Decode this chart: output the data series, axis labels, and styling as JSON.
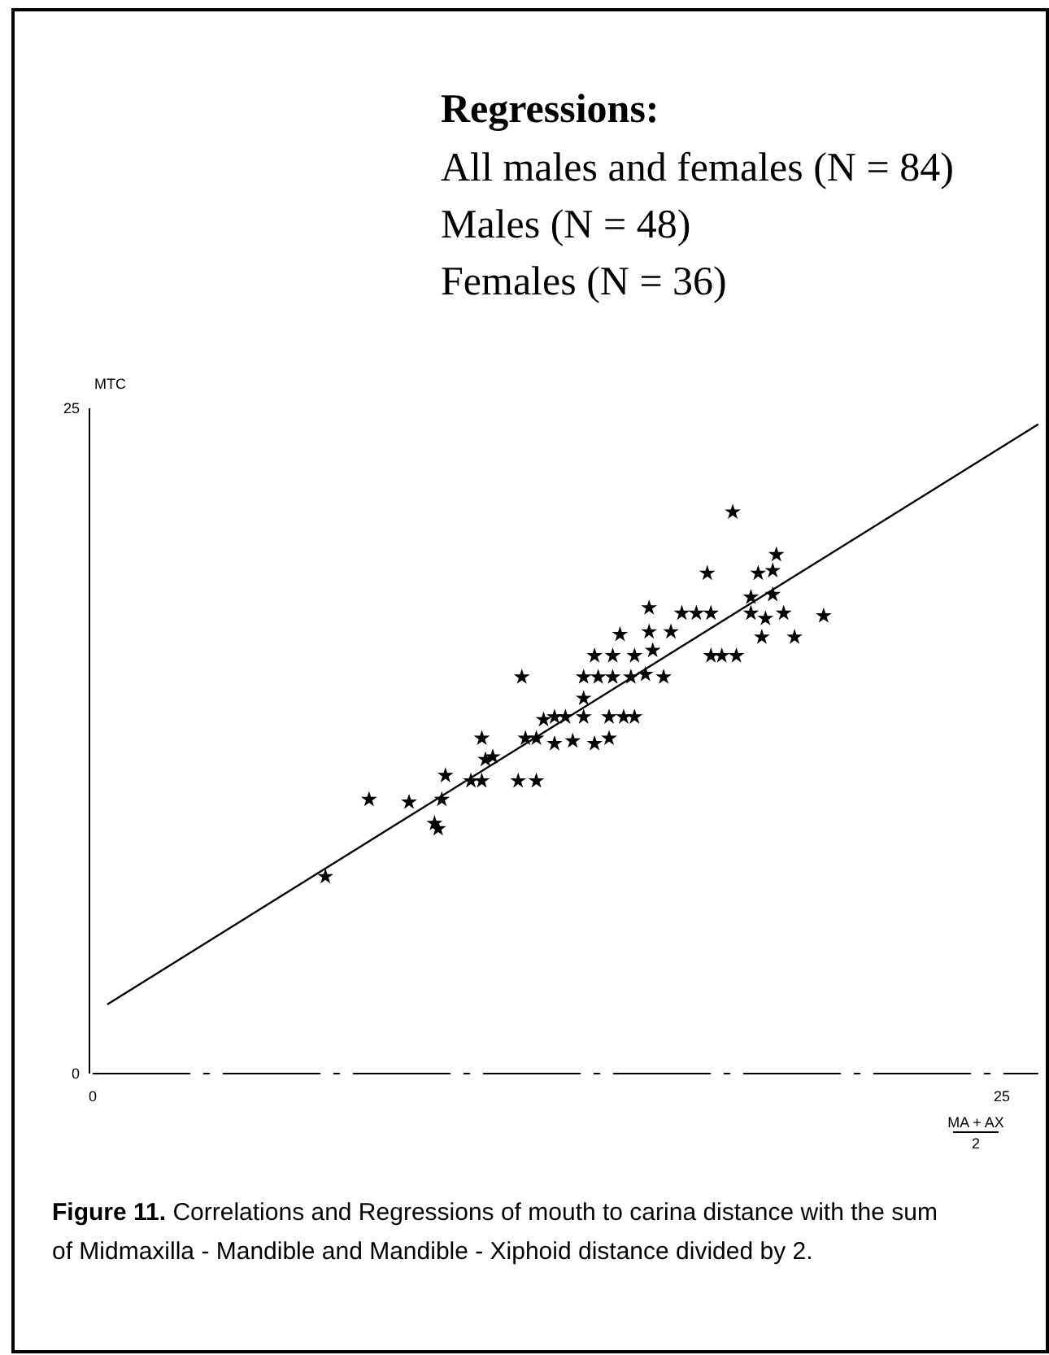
{
  "chart_data": {
    "type": "scatter",
    "title": "Regressions:",
    "xlabel": "MA + AX\n2",
    "ylabel": "MTC",
    "annotations": [
      "All males and females (N = 84)",
      "Males (N = 48)",
      "Females (N = 36)",
      "Figure 11. Correlations and Regressions of mouth to carina distance with the sum of Midmaxilla - Mandible and Mandible - Xiphoid distance divided by 2."
    ],
    "xlim": [
      0,
      26
    ],
    "ylim": [
      0,
      25
    ],
    "xticks": [
      0,
      25
    ],
    "yticks": [
      0,
      25
    ],
    "grid": false,
    "series": [
      {
        "color": "#000000",
        "marker": "star",
        "x": [
          6.4,
          7.6,
          8.7,
          9.6,
          9.4,
          9.5,
          9.7,
          10.4,
          10.7,
          10.7,
          10.8,
          11,
          11.7,
          12.2,
          11.8,
          11.9,
          12.2,
          12.4,
          12.7,
          13,
          13.5,
          12.7,
          13.2,
          13.8,
          14.2,
          14.2,
          14.6,
          14.9,
          13.5,
          13.5,
          13.9,
          14.3,
          14.8,
          15.2,
          15.7,
          13.8,
          14.3,
          14.9,
          15.4,
          14.5,
          15.3,
          15.9,
          15.3,
          16.2,
          16.6,
          17,
          17,
          17.3,
          17.7,
          17.6,
          16.9,
          18.1,
          18.7,
          18.3,
          18.7,
          18.8,
          18.1,
          18.5,
          19,
          18.4,
          19.3,
          20.1
        ],
        "values": [
          7.4,
          10.3,
          10.2,
          10.3,
          9.4,
          9.2,
          11.2,
          11,
          11,
          12.6,
          11.8,
          11.9,
          11,
          11,
          14.9,
          12.6,
          12.6,
          13.3,
          13.4,
          13.4,
          13.4,
          12.4,
          12.5,
          12.4,
          12.6,
          13.4,
          13.4,
          13.4,
          14.1,
          14.9,
          14.9,
          14.9,
          14.9,
          15,
          14.9,
          15.7,
          15.7,
          15.7,
          15.9,
          16.5,
          16.6,
          16.6,
          17.5,
          17.3,
          17.3,
          17.3,
          15.7,
          15.7,
          15.7,
          21.1,
          18.8,
          17.9,
          18,
          18.8,
          18.9,
          19.5,
          17.3,
          17.1,
          17.3,
          16.4,
          16.4,
          17.2
        ]
      },
      {
        "type": "line",
        "color": "#000000",
        "marker": "none",
        "line_style": "solid",
        "x": [
          0.4,
          26
        ],
        "values": [
          2.6,
          24.4
        ]
      }
    ]
  }
}
